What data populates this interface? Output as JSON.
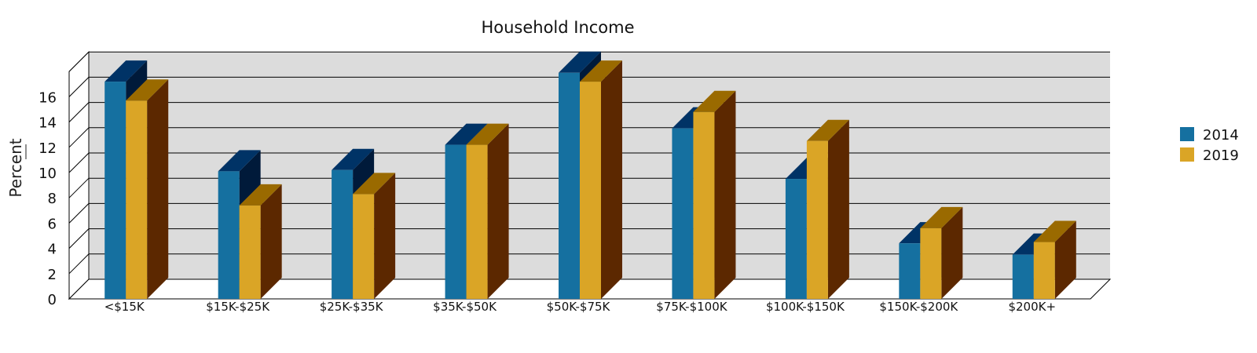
{
  "chart_data": {
    "type": "bar",
    "title": "Household Income",
    "xlabel": "",
    "ylabel": "Percent",
    "ylim": [
      0,
      18
    ],
    "yticks": [
      0,
      2,
      4,
      6,
      8,
      10,
      12,
      14,
      16
    ],
    "grid": true,
    "legend_position": "right",
    "categories": [
      "<$15K",
      "$15K-$25K",
      "$25K-$35K",
      "$35K-$50K",
      "$50K-$75K",
      "$75K-$100K",
      "$100K-$150K",
      "$150K-$200K",
      "$200K+"
    ],
    "series": [
      {
        "name": "2014",
        "color": "#1570a0",
        "values": [
          17.2,
          10.1,
          10.2,
          12.2,
          17.9,
          13.5,
          9.5,
          4.4,
          3.5
        ]
      },
      {
        "name": "2019",
        "color": "#daa526",
        "values": [
          15.7,
          7.4,
          8.3,
          12.2,
          17.2,
          14.8,
          12.5,
          5.6,
          4.5
        ]
      }
    ]
  }
}
